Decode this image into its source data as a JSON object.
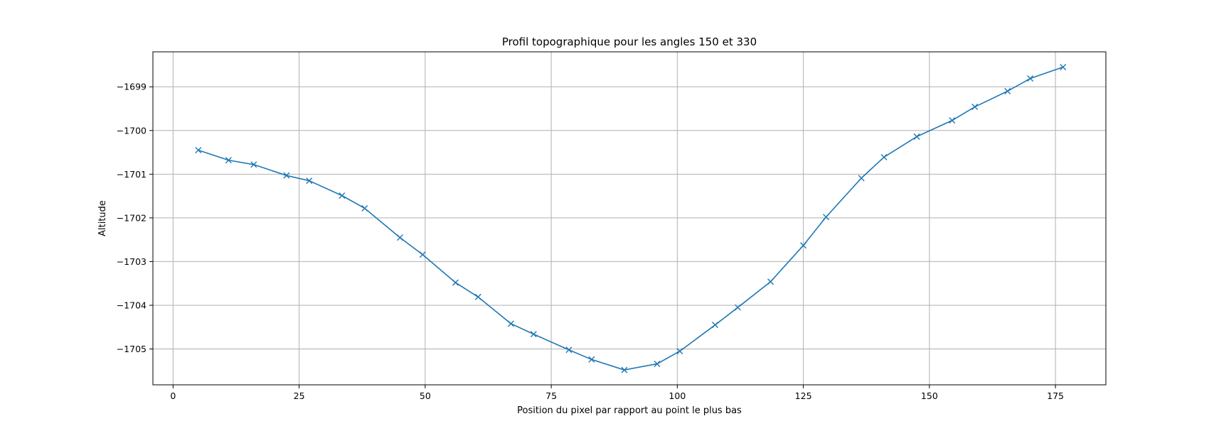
{
  "chart_data": {
    "type": "line",
    "title": "Profil topographique pour les angles 150 et 330",
    "xlabel": "Position du pixel par rapport au point le plus bas",
    "ylabel": "Altitude",
    "xlim": [
      -4,
      185
    ],
    "ylim": [
      -1705.82,
      -1698.2
    ],
    "x_ticks": [
      0,
      25,
      50,
      75,
      100,
      125,
      150,
      175
    ],
    "x_tick_labels": [
      "0",
      "25",
      "50",
      "75",
      "100",
      "125",
      "150",
      "175"
    ],
    "y_ticks": [
      -1699,
      -1700,
      -1701,
      -1702,
      -1703,
      -1704,
      -1705
    ],
    "y_tick_labels": [
      "−1699",
      "−1700",
      "−1701",
      "−1702",
      "−1703",
      "−1704",
      "−1705"
    ],
    "grid": true,
    "marker": "x",
    "color": "#1f77b4",
    "series": [
      {
        "x": [
          5,
          11,
          16,
          22.5,
          27,
          33.5,
          38,
          45,
          49.5,
          56,
          60.5,
          67,
          71.5,
          78.5,
          83,
          89.5,
          96,
          100.5,
          107.5,
          112,
          118.5,
          125,
          129.5,
          136.5,
          141,
          147.5,
          154.5,
          159,
          165.5,
          170,
          176.5
        ],
        "y": [
          -1700.45,
          -1700.68,
          -1700.78,
          -1701.03,
          -1701.15,
          -1701.49,
          -1701.78,
          -1702.45,
          -1702.84,
          -1703.48,
          -1703.81,
          -1704.42,
          -1704.66,
          -1705.02,
          -1705.24,
          -1705.48,
          -1705.34,
          -1705.05,
          -1704.45,
          -1704.05,
          -1703.46,
          -1702.63,
          -1701.98,
          -1701.09,
          -1700.61,
          -1700.14,
          -1699.77,
          -1699.46,
          -1699.1,
          -1698.81,
          -1698.55
        ]
      }
    ]
  }
}
